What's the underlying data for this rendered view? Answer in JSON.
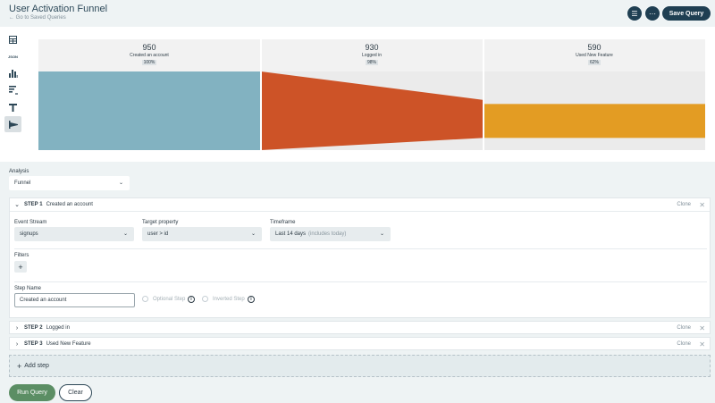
{
  "header": {
    "title": "User Activation Funnel",
    "back_link": "← Go to Saved Queries",
    "save_label": "Save Query"
  },
  "toolbar": {
    "json_label": "JSON",
    "icons": [
      "table-icon",
      "json-icon",
      "bar-chart-icon",
      "horizontal-bar-icon",
      "funnel-icon",
      "funnel-chart-icon"
    ]
  },
  "chart_data": {
    "type": "funnel",
    "steps": [
      {
        "label": "Created an account",
        "count": 950,
        "percent_label": "100%",
        "color": "#82b2c1"
      },
      {
        "label": "Logged in",
        "count": 930,
        "percent_label": "98%",
        "color": "#cd5327"
      },
      {
        "label": "Used New Feature",
        "count": 590,
        "percent_label": "62%",
        "color": "#e39c23"
      }
    ]
  },
  "analysis": {
    "label": "Analysis",
    "value": "Funnel"
  },
  "steps": [
    {
      "num": "STEP 1",
      "name": "Created an account",
      "clone": "Clone",
      "expanded": true,
      "event_stream_label": "Event Stream",
      "event_stream_value": "signups",
      "target_property_label": "Target property",
      "target_property_value": "user > id",
      "timeframe_label": "Timeframe",
      "timeframe_value": "Last 14 days",
      "timeframe_note": "(includes today)",
      "filters_label": "Filters",
      "step_name_label": "Step Name",
      "step_name_value": "Created an account",
      "optional_label": "Optional Step",
      "inverted_label": "Inverted Step"
    },
    {
      "num": "STEP 2",
      "name": "Logged in",
      "clone": "Clone"
    },
    {
      "num": "STEP 3",
      "name": "Used New Feature",
      "clone": "Clone"
    }
  ],
  "actions": {
    "add_step": "Add step",
    "run": "Run Query",
    "clear": "Clear"
  }
}
